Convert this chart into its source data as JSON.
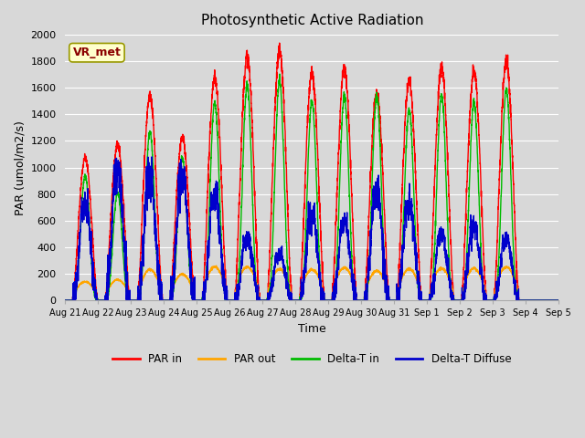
{
  "title": "Photosynthetic Active Radiation",
  "xlabel": "Time",
  "ylabel": "PAR (umol/m2/s)",
  "ylim": [
    0,
    2000
  ],
  "background_color": "#d8d8d8",
  "plot_bg_color": "#d8d8d8",
  "grid_color": "#ffffff",
  "annotation_text": "VR_met",
  "annotation_box_color": "#ffffcc",
  "annotation_text_color": "#8b0000",
  "x_tick_labels": [
    "Aug 21",
    "Aug 22",
    "Aug 23",
    "Aug 24",
    "Aug 25",
    "Aug 26",
    "Aug 27",
    "Aug 28",
    "Aug 29",
    "Aug 30",
    "Aug 31",
    "Sep 1",
    "Sep 2",
    "Sep 3",
    "Sep 4",
    "Sep 5"
  ],
  "legend_labels": [
    "PAR in",
    "PAR out",
    "Delta-T in",
    "Delta-T Diffuse"
  ],
  "legend_colors": [
    "#ff0000",
    "#ffa500",
    "#00bb00",
    "#0000cc"
  ],
  "series_colors": [
    "#ff0000",
    "#ffa500",
    "#00bb00",
    "#0000cc"
  ],
  "num_days": 15,
  "day_peaks_par_in": [
    1070,
    1170,
    1540,
    1230,
    1670,
    1840,
    1880,
    1710,
    1750,
    1560,
    1650,
    1750,
    1720,
    1800,
    0
  ],
  "day_peaks_par_out": [
    140,
    155,
    230,
    195,
    250,
    250,
    235,
    230,
    245,
    220,
    235,
    240,
    240,
    250,
    0
  ],
  "day_peaks_delta_in": [
    940,
    810,
    1270,
    1070,
    1490,
    1620,
    1650,
    1500,
    1540,
    1540,
    1430,
    1550,
    1490,
    1590,
    0
  ],
  "day_peaks_delta_diff": [
    730,
    940,
    920,
    895,
    790,
    460,
    340,
    630,
    580,
    810,
    730,
    500,
    560,
    460,
    0
  ]
}
